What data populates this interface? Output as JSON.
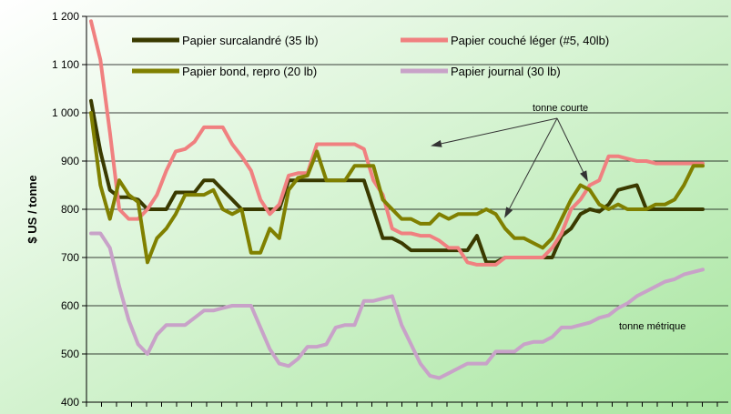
{
  "chart_data": {
    "type": "line",
    "ylabel": "$ US / tonne",
    "ylim": [
      400,
      1200
    ],
    "y_ticks": [
      "400",
      "500",
      "600",
      "700",
      "800",
      "900",
      "1 000",
      "1 100",
      "1 200"
    ],
    "grid": "horizontal",
    "legend_position": "top",
    "background_gradient": [
      "#ffffff",
      "#a8e6a0"
    ],
    "x": [
      0,
      2,
      4,
      6,
      8,
      10,
      12,
      14,
      16,
      18,
      20,
      22,
      24,
      26,
      28,
      30,
      32,
      34,
      36,
      38,
      40,
      42,
      44,
      46,
      48,
      50,
      52,
      54,
      56,
      58,
      60,
      62,
      64,
      66,
      68,
      70,
      72,
      74,
      76,
      78,
      80,
      82,
      84,
      86,
      88,
      90,
      92,
      94,
      96,
      98,
      100,
      102,
      104,
      106,
      108,
      110,
      112,
      114,
      116,
      118,
      120,
      122,
      124,
      126,
      128,
      130
    ],
    "series": [
      {
        "name": "Papier surcalandré (35 lb)",
        "color": "#3a3a00",
        "values": [
          1025,
          920,
          840,
          825,
          825,
          820,
          800,
          800,
          800,
          835,
          835,
          835,
          860,
          860,
          840,
          820,
          800,
          800,
          800,
          800,
          800,
          860,
          860,
          860,
          860,
          860,
          860,
          860,
          860,
          860,
          800,
          740,
          740,
          730,
          715,
          715,
          715,
          715,
          715,
          715,
          715,
          745,
          690,
          690,
          700,
          700,
          700,
          700,
          700,
          700,
          745,
          760,
          790,
          800,
          795,
          810,
          840,
          845,
          850,
          800,
          800,
          800,
          800,
          800,
          800,
          800
        ]
      },
      {
        "name": "Papier couché léger (#5, 40lb)",
        "color": "#f08080",
        "values": [
          1190,
          1110,
          960,
          800,
          780,
          780,
          800,
          830,
          880,
          920,
          925,
          940,
          970,
          970,
          970,
          935,
          910,
          880,
          820,
          790,
          810,
          870,
          875,
          875,
          935,
          935,
          935,
          935,
          935,
          925,
          860,
          830,
          760,
          750,
          750,
          745,
          745,
          735,
          720,
          720,
          690,
          685,
          685,
          685,
          700,
          700,
          700,
          700,
          700,
          720,
          750,
          800,
          820,
          850,
          860,
          910,
          910,
          905,
          900,
          900,
          895,
          895,
          895,
          895,
          895,
          895
        ]
      },
      {
        "name": "Papier bond, repro (20 lb)",
        "color": "#808000",
        "values": [
          1000,
          850,
          780,
          860,
          830,
          815,
          690,
          740,
          760,
          790,
          830,
          830,
          830,
          840,
          800,
          790,
          800,
          710,
          710,
          760,
          740,
          840,
          865,
          870,
          920,
          860,
          860,
          860,
          890,
          890,
          890,
          820,
          800,
          780,
          780,
          770,
          770,
          790,
          780,
          790,
          790,
          790,
          800,
          790,
          760,
          740,
          740,
          730,
          720,
          740,
          780,
          820,
          850,
          840,
          810,
          800,
          810,
          800,
          800,
          800,
          810,
          810,
          820,
          850,
          890,
          890
        ]
      },
      {
        "name": "Papier journal (30 lb)",
        "color": "#c8a2c8",
        "values": [
          750,
          750,
          720,
          640,
          570,
          520,
          500,
          540,
          560,
          560,
          560,
          575,
          590,
          590,
          595,
          600,
          600,
          600,
          555,
          510,
          480,
          475,
          490,
          515,
          515,
          520,
          555,
          560,
          560,
          610,
          610,
          615,
          620,
          560,
          520,
          480,
          455,
          450,
          460,
          470,
          480,
          480,
          480,
          505,
          505,
          505,
          520,
          525,
          525,
          535,
          555,
          555,
          560,
          565,
          575,
          580,
          595,
          605,
          620,
          630,
          640,
          650,
          655,
          665,
          670,
          675
        ]
      }
    ],
    "annotations": [
      "tonne courte",
      "tonne métrique"
    ]
  }
}
